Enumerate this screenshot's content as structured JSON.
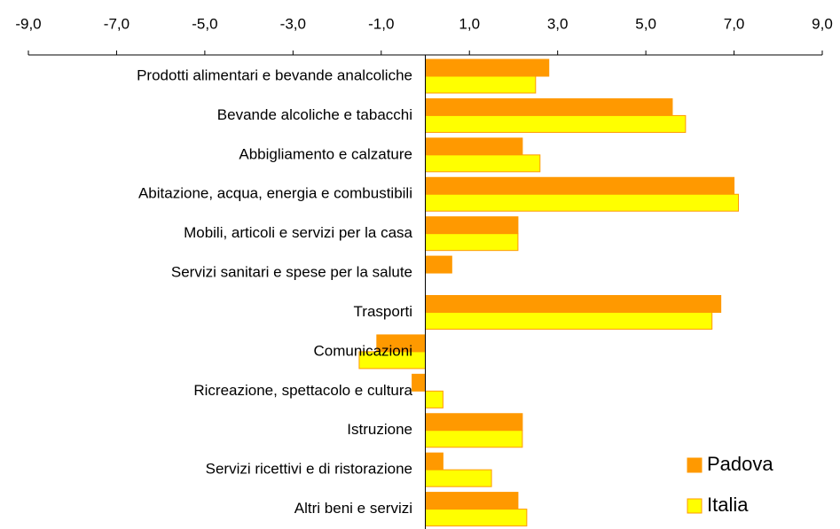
{
  "chart_data": {
    "type": "hbar",
    "categories": [
      "Prodotti alimentari e bevande analcoliche",
      "Bevande alcoliche e tabacchi",
      "Abbigliamento e calzature",
      "Abitazione, acqua, energia e combustibili",
      "Mobili, articoli e servizi per la casa",
      "Servizi sanitari e spese per la salute",
      "Trasporti",
      "Comunicazioni",
      "Ricreazione, spettacolo e cultura",
      "Istruzione",
      "Servizi ricettivi e di ristorazione",
      "Altri beni e servizi"
    ],
    "series": [
      {
        "name": "Padova",
        "color": "#ff9900",
        "values": [
          2.8,
          5.6,
          2.2,
          7.0,
          2.1,
          0.6,
          6.7,
          -1.1,
          -0.3,
          2.2,
          0.4,
          2.1
        ]
      },
      {
        "name": "Italia",
        "color": "#ffff00",
        "values": [
          2.5,
          5.9,
          2.6,
          7.1,
          2.1,
          0,
          6.5,
          -1.5,
          0.4,
          2.2,
          1.5,
          2.3
        ]
      }
    ],
    "xlim": [
      -9,
      9
    ],
    "xticks": [
      {
        "value": -9,
        "label": "-9,0"
      },
      {
        "value": -7,
        "label": "-7,0"
      },
      {
        "value": -5,
        "label": "-5,0"
      },
      {
        "value": -3,
        "label": "-3,0"
      },
      {
        "value": -1,
        "label": "-1,0"
      },
      {
        "value": 1,
        "label": "1,0"
      },
      {
        "value": 3,
        "label": "3,0"
      },
      {
        "value": 5,
        "label": "5,0"
      },
      {
        "value": 7,
        "label": "7,0"
      },
      {
        "value": 9,
        "label": "9,0"
      }
    ],
    "legend": "lower right"
  }
}
